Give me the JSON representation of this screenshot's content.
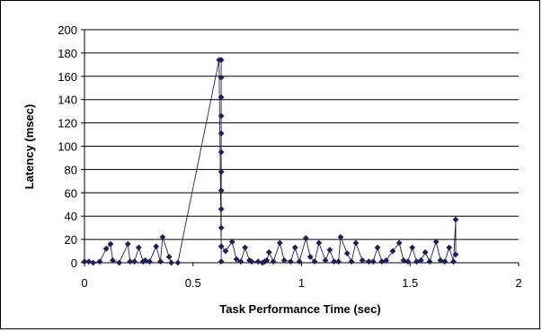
{
  "chart_data": {
    "type": "line",
    "title": "",
    "xlabel": "Task Performance Time (sec)",
    "ylabel": "Latency (msec)",
    "xlim": [
      0,
      2
    ],
    "ylim": [
      0,
      200
    ],
    "xticks": [
      0,
      0.5,
      1,
      1.5,
      2
    ],
    "xtick_labels": [
      "0",
      "0.5",
      "1",
      "1.5",
      "2"
    ],
    "yticks": [
      0,
      20,
      40,
      60,
      80,
      100,
      120,
      140,
      160,
      180,
      200
    ],
    "ytick_labels": [
      "0",
      "20",
      "40",
      "60",
      "80",
      "100",
      "120",
      "140",
      "160",
      "180",
      "200"
    ],
    "grid": "horizontal",
    "legend": "none",
    "series_color": "#1f1f5c",
    "series": [
      {
        "name": "",
        "x": [
          0.0,
          0.02,
          0.04,
          0.07,
          0.1,
          0.12,
          0.13,
          0.16,
          0.2,
          0.21,
          0.23,
          0.25,
          0.27,
          0.28,
          0.3,
          0.33,
          0.35,
          0.36,
          0.39,
          0.4,
          0.43,
          0.62,
          0.63,
          0.63,
          0.63,
          0.63,
          0.63,
          0.63,
          0.63,
          0.63,
          0.63,
          0.63,
          0.63,
          0.63,
          0.63,
          0.63,
          0.65,
          0.68,
          0.7,
          0.72,
          0.74,
          0.76,
          0.77,
          0.8,
          0.82,
          0.83,
          0.84,
          0.85,
          0.87,
          0.9,
          0.92,
          0.95,
          0.97,
          0.99,
          1.02,
          1.04,
          1.06,
          1.08,
          1.11,
          1.13,
          1.15,
          1.17,
          1.18,
          1.21,
          1.23,
          1.25,
          1.28,
          1.31,
          1.33,
          1.35,
          1.37,
          1.39,
          1.42,
          1.45,
          1.47,
          1.49,
          1.51,
          1.53,
          1.55,
          1.57,
          1.59,
          1.62,
          1.64,
          1.66,
          1.68,
          1.7,
          1.71,
          1.71
        ],
        "y": [
          1,
          1,
          0,
          1,
          12,
          16,
          2,
          0,
          16,
          1,
          1,
          13,
          1,
          2,
          1,
          14,
          1,
          22,
          5,
          0,
          0,
          174,
          14,
          1,
          30,
          46,
          62,
          78,
          95,
          111,
          126,
          142,
          159,
          174,
          159,
          14,
          10,
          18,
          3,
          1,
          13,
          2,
          1,
          1,
          0,
          1,
          2,
          9,
          1,
          17,
          2,
          1,
          13,
          1,
          21,
          5,
          1,
          17,
          2,
          11,
          1,
          1,
          22,
          8,
          1,
          17,
          2,
          1,
          1,
          13,
          1,
          2,
          10,
          17,
          2,
          1,
          13,
          1,
          2,
          9,
          1,
          18,
          2,
          1,
          13,
          1,
          37,
          7
        ]
      }
    ]
  }
}
